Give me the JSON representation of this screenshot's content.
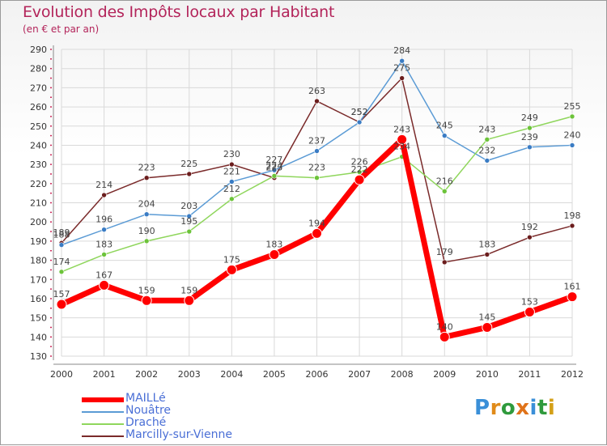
{
  "header": {
    "title": "Evolution des Impôts locaux par Habitant",
    "subtitle": "(en € et par an)"
  },
  "logo": {
    "text": "Proxiti",
    "letters": [
      "P",
      "r",
      "o",
      "x",
      "i",
      "t",
      "i"
    ],
    "colors": [
      "#3a8fd8",
      "#e08b1a",
      "#2f9a3c",
      "#e0731a",
      "#3a8fd8",
      "#2f9a3c",
      "#d4a017"
    ]
  },
  "colors": {
    "MAILLé": "#ff0000",
    "Nouâtre": "#5b9bd5",
    "Draché": "#8fd65c",
    "Marcilly-sur-Vienne": "#7a2a2a",
    "grid": "#d9d9d9",
    "axis": "#888888",
    "tick_text": "#333333"
  },
  "chart_data": {
    "type": "line",
    "title": "Evolution des Impôts locaux par Habitant",
    "subtitle": "(en € et par an)",
    "xlabel": "",
    "ylabel": "",
    "ylim": [
      130,
      290
    ],
    "yticks": [
      130,
      140,
      150,
      160,
      170,
      180,
      190,
      200,
      210,
      220,
      230,
      240,
      250,
      260,
      270,
      280,
      290
    ],
    "categories": [
      "2000",
      "2001",
      "2002",
      "2003",
      "2004",
      "2005",
      "2006",
      "2007",
      "2008",
      "2009",
      "2010",
      "2011",
      "2012"
    ],
    "grid": true,
    "legend_position": "bottom-left",
    "series": [
      {
        "name": "Marcilly-sur-Vienne",
        "values": [
          189,
          214,
          223,
          225,
          230,
          223,
          263,
          252,
          275,
          179,
          183,
          192,
          198
        ]
      },
      {
        "name": "Nouâtre",
        "values": [
          188,
          196,
          204,
          203,
          221,
          227,
          237,
          252,
          284,
          245,
          232,
          239,
          240
        ]
      },
      {
        "name": "Draché",
        "values": [
          174,
          183,
          190,
          195,
          212,
          224,
          223,
          226,
          234,
          216,
          243,
          249,
          255
        ]
      },
      {
        "name": "MAILLé",
        "values": [
          157,
          167,
          159,
          159,
          175,
          183,
          194,
          222,
          243,
          140,
          145,
          153,
          161
        ]
      }
    ]
  },
  "legend": {
    "items": [
      {
        "name": "MAILLé"
      },
      {
        "name": "Nouâtre"
      },
      {
        "name": "Draché"
      },
      {
        "name": "Marcilly-sur-Vienne"
      }
    ]
  }
}
